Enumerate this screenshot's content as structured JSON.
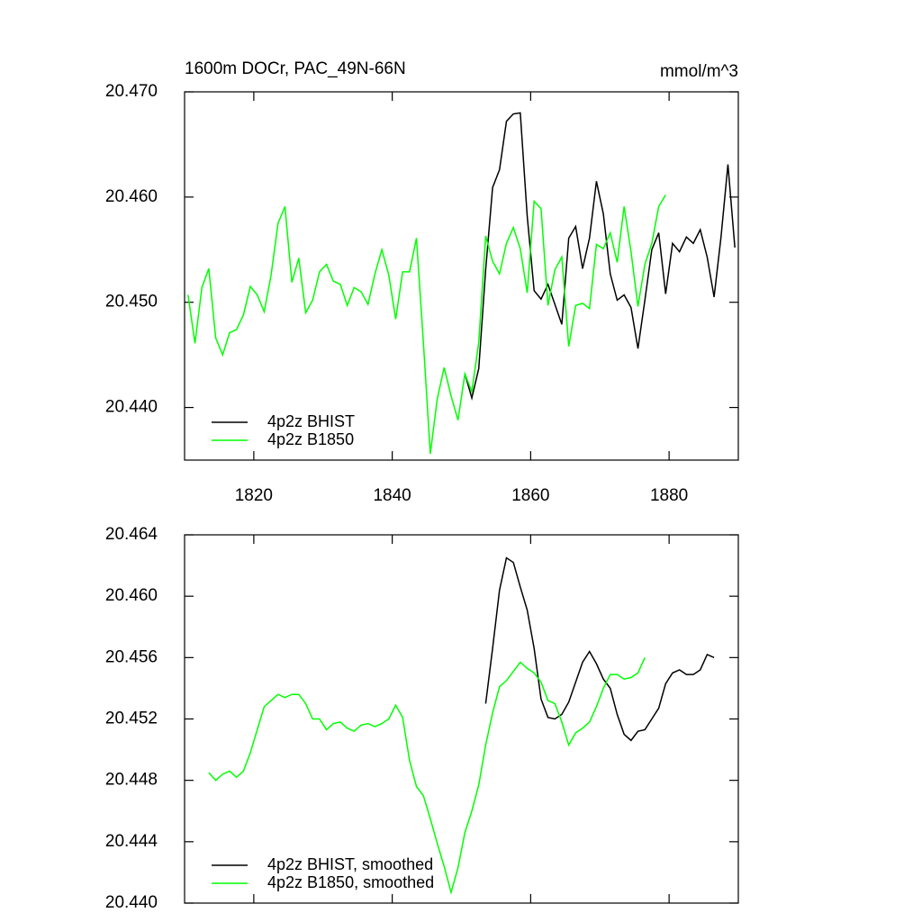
{
  "chart_data": [
    {
      "type": "line",
      "title": "1600m DOCr, PAC_49N-66N",
      "units": "mmol/m^3",
      "xlim": [
        1810,
        1890
      ],
      "xticks": [
        1820,
        1840,
        1860,
        1880
      ],
      "ylim": [
        20.435,
        20.47
      ],
      "yticks": [
        {
          "value": 20.44,
          "label": "20.440"
        },
        {
          "value": 20.45,
          "label": "20.450"
        },
        {
          "value": 20.46,
          "label": "20.460"
        },
        {
          "value": 20.47,
          "label": "20.470"
        }
      ],
      "xtick_labels": true,
      "legend": "lower left",
      "series": [
        {
          "name": "4p2z BHIST",
          "color": "#000000",
          "x": [
            1850.5,
            1851.5,
            1852.5,
            1853.5,
            1854.5,
            1855.5,
            1856.5,
            1857.5,
            1858.5,
            1859.5,
            1860.5,
            1861.5,
            1862.5,
            1863.5,
            1864.5,
            1865.5,
            1866.5,
            1867.5,
            1868.5,
            1869.5,
            1870.5,
            1871.5,
            1872.5,
            1873.5,
            1874.5,
            1875.5,
            1876.5,
            1877.5,
            1878.5,
            1879.5,
            1880.5,
            1881.5,
            1882.5,
            1883.5,
            1884.5,
            1885.5,
            1886.5,
            1887.5,
            1888.5,
            1889.5
          ],
          "values": [
            20.4432,
            20.4409,
            20.4437,
            20.4531,
            20.4609,
            20.4626,
            20.4672,
            20.4679,
            20.468,
            20.4582,
            20.4511,
            20.4503,
            20.4517,
            20.4498,
            20.4479,
            20.4561,
            20.4572,
            20.4532,
            20.4561,
            20.4615,
            20.4584,
            20.4527,
            20.4502,
            20.4507,
            20.4495,
            20.4456,
            20.4502,
            20.455,
            20.4566,
            20.4508,
            20.4556,
            20.4548,
            20.4562,
            20.4556,
            20.4569,
            20.4543,
            20.4505,
            20.4562,
            20.4631,
            20.4552
          ]
        },
        {
          "name": "4p2z B1850",
          "color": "#00ff00",
          "x": [
            1810.5,
            1811.5,
            1812.5,
            1813.5,
            1814.5,
            1815.5,
            1816.5,
            1817.5,
            1818.5,
            1819.5,
            1820.5,
            1821.5,
            1822.5,
            1823.5,
            1824.5,
            1825.5,
            1826.5,
            1827.5,
            1828.5,
            1829.5,
            1830.5,
            1831.5,
            1832.5,
            1833.5,
            1834.5,
            1835.5,
            1836.5,
            1837.5,
            1838.5,
            1839.5,
            1840.5,
            1841.5,
            1842.5,
            1843.5,
            1844.5,
            1845.5,
            1846.5,
            1847.5,
            1848.5,
            1849.5,
            1850.5,
            1851.5,
            1852.5,
            1853.5,
            1854.5,
            1855.5,
            1856.5,
            1857.5,
            1858.5,
            1859.5,
            1860.5,
            1861.5,
            1862.5,
            1863.5,
            1864.5,
            1865.5,
            1866.5,
            1867.5,
            1868.5,
            1869.5,
            1870.5,
            1871.5,
            1872.5,
            1873.5,
            1874.5,
            1875.5,
            1876.5,
            1877.5,
            1878.5,
            1879.5
          ],
          "values": [
            20.4507,
            20.4461,
            20.4514,
            20.4532,
            20.4466,
            20.445,
            20.4471,
            20.4474,
            20.4488,
            20.4515,
            20.4507,
            20.4491,
            20.4526,
            20.4575,
            20.4591,
            20.4519,
            20.4542,
            20.449,
            20.4502,
            20.4529,
            20.4536,
            20.452,
            20.4517,
            20.4497,
            20.4514,
            20.451,
            20.4498,
            20.4527,
            20.455,
            20.4526,
            20.4484,
            20.4529,
            20.4529,
            20.4561,
            20.4462,
            20.4356,
            20.4408,
            20.4438,
            20.4411,
            20.4388,
            20.4432,
            20.4415,
            20.4462,
            20.4563,
            20.4539,
            20.4527,
            20.4556,
            20.4571,
            20.4551,
            20.4509,
            20.4596,
            20.4589,
            20.4497,
            20.4531,
            20.4543,
            20.4458,
            20.4497,
            20.4499,
            20.4494,
            20.4555,
            20.4551,
            20.4566,
            20.4538,
            20.4591,
            20.4548,
            20.4496,
            20.4536,
            20.4556,
            20.4591,
            20.4602
          ]
        }
      ]
    },
    {
      "type": "line",
      "xlim": [
        1810,
        1890
      ],
      "xticks": [
        1820,
        1840,
        1860,
        1880
      ],
      "ylim": [
        20.44,
        20.464
      ],
      "yticks": [
        {
          "value": 20.44,
          "label": "20.440"
        },
        {
          "value": 20.444,
          "label": "20.444"
        },
        {
          "value": 20.448,
          "label": "20.448"
        },
        {
          "value": 20.452,
          "label": "20.452"
        },
        {
          "value": 20.456,
          "label": "20.456"
        },
        {
          "value": 20.46,
          "label": "20.460"
        },
        {
          "value": 20.464,
          "label": "20.464"
        }
      ],
      "xtick_labels": false,
      "legend": "lower left",
      "series": [
        {
          "name": "4p2z BHIST, smoothed",
          "color": "#000000",
          "x": [
            1853.5,
            1854.5,
            1855.5,
            1856.5,
            1857.5,
            1858.5,
            1859.5,
            1860.5,
            1861.5,
            1862.5,
            1863.5,
            1864.5,
            1865.5,
            1866.5,
            1867.5,
            1868.5,
            1869.5,
            1870.5,
            1871.5,
            1872.5,
            1873.5,
            1874.5,
            1875.5,
            1876.5,
            1877.5,
            1878.5,
            1879.5,
            1880.5,
            1881.5,
            1882.5,
            1883.5,
            1884.5,
            1885.5,
            1886.5
          ],
          "values": [
            20.453,
            20.4566,
            20.4604,
            20.4625,
            20.4622,
            20.4606,
            20.4591,
            20.4566,
            20.4533,
            20.4521,
            20.452,
            20.4523,
            20.4531,
            20.4544,
            20.4557,
            20.4564,
            20.4556,
            20.4546,
            20.454,
            20.4523,
            20.451,
            20.4506,
            20.4512,
            20.4513,
            20.452,
            20.4527,
            20.4543,
            20.455,
            20.4552,
            20.4549,
            20.4549,
            20.4552,
            20.4562,
            20.456
          ]
        },
        {
          "name": "4p2z B1850, smoothed",
          "color": "#00ff00",
          "x": [
            1813.5,
            1814.5,
            1815.5,
            1816.5,
            1817.5,
            1818.5,
            1819.5,
            1820.5,
            1821.5,
            1822.5,
            1823.5,
            1824.5,
            1825.5,
            1826.5,
            1827.5,
            1828.5,
            1829.5,
            1830.5,
            1831.5,
            1832.5,
            1833.5,
            1834.5,
            1835.5,
            1836.5,
            1837.5,
            1838.5,
            1839.5,
            1840.5,
            1841.5,
            1842.5,
            1843.5,
            1844.5,
            1845.5,
            1846.5,
            1847.5,
            1848.5,
            1849.5,
            1850.5,
            1851.5,
            1852.5,
            1853.5,
            1854.5,
            1855.5,
            1856.5,
            1857.5,
            1858.5,
            1859.5,
            1860.5,
            1861.5,
            1862.5,
            1863.5,
            1864.5,
            1865.5,
            1866.5,
            1867.5,
            1868.5,
            1869.5,
            1870.5,
            1871.5,
            1872.5,
            1873.5,
            1874.5,
            1875.5,
            1876.5
          ],
          "values": [
            20.4485,
            20.448,
            20.4484,
            20.4486,
            20.4482,
            20.4486,
            20.4498,
            20.4513,
            20.4528,
            20.4532,
            20.4536,
            20.4534,
            20.4536,
            20.4536,
            20.453,
            20.452,
            20.452,
            20.4513,
            20.4517,
            20.4518,
            20.4514,
            20.4512,
            20.4516,
            20.4517,
            20.4515,
            20.4517,
            20.452,
            20.4529,
            20.4521,
            20.4493,
            20.4476,
            20.447,
            20.4455,
            20.4439,
            20.4424,
            20.4407,
            20.4423,
            20.4446,
            20.446,
            20.4477,
            20.4503,
            20.4524,
            20.4541,
            20.4545,
            20.4551,
            20.4557,
            20.4553,
            20.455,
            20.4544,
            20.4532,
            20.453,
            20.4518,
            20.4503,
            20.4511,
            20.4514,
            20.4518,
            20.4528,
            20.454,
            20.4549,
            20.4549,
            20.4546,
            20.4547,
            20.455,
            20.456
          ]
        }
      ]
    }
  ]
}
